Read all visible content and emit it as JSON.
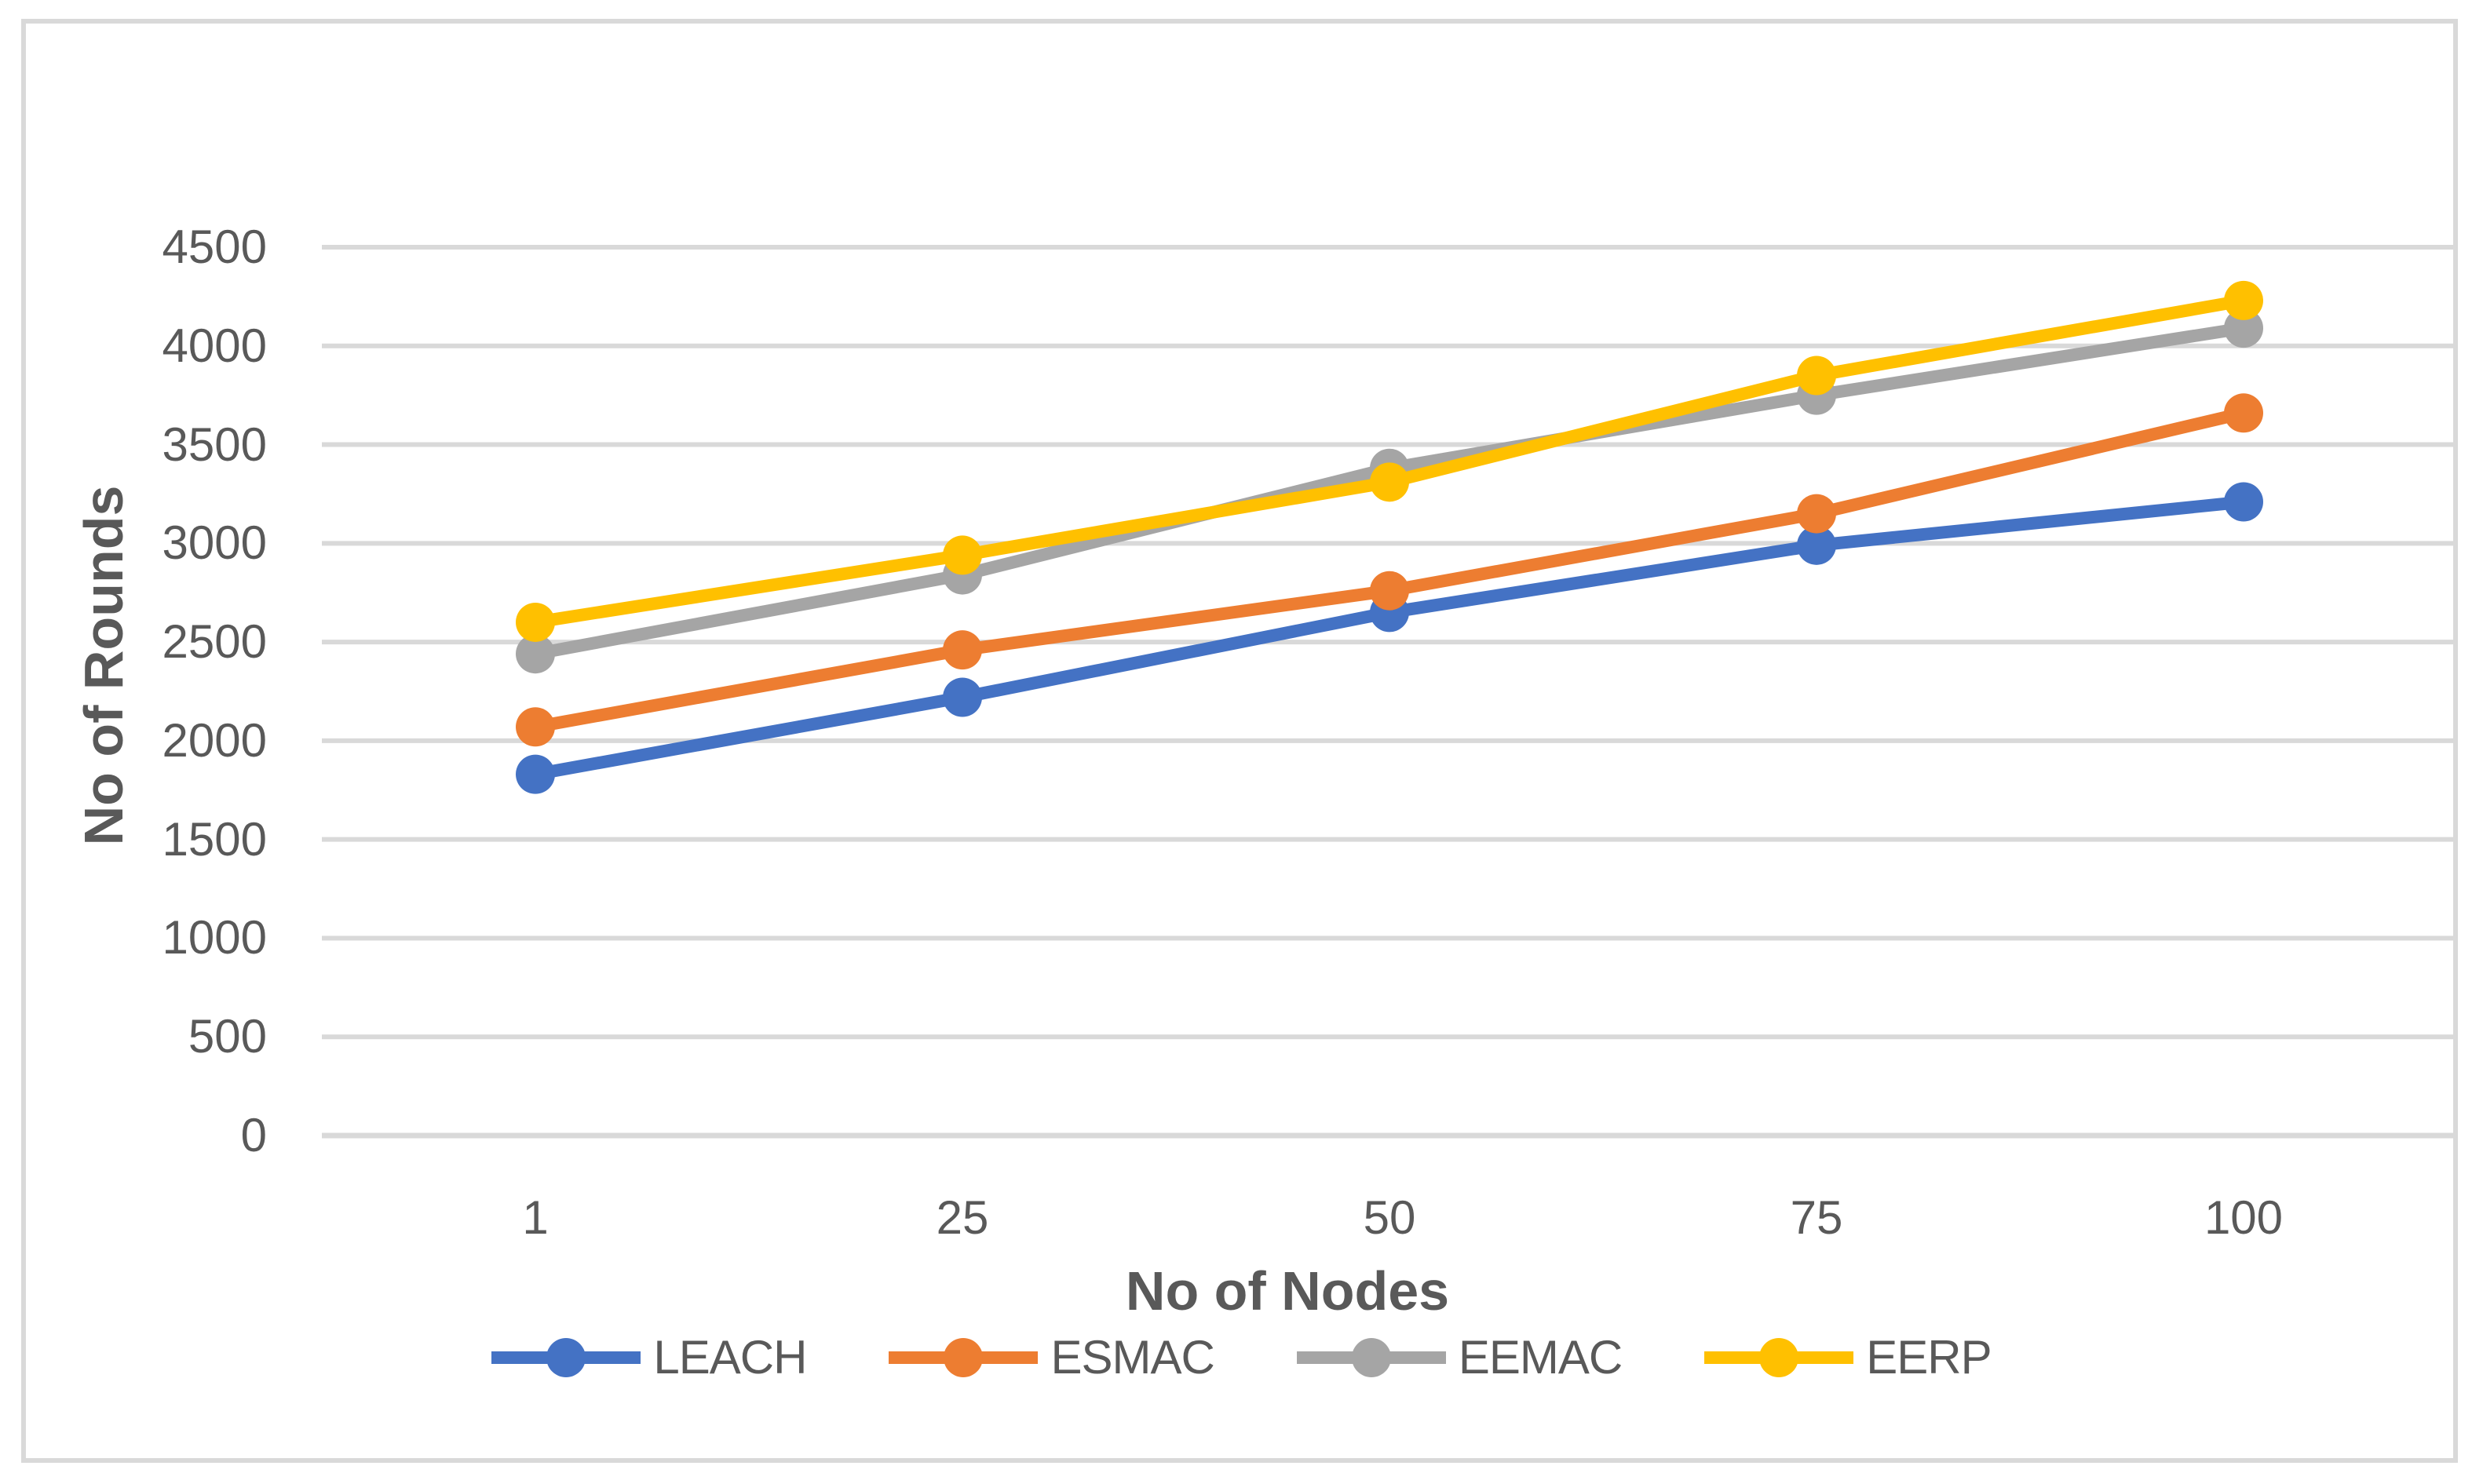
{
  "chart_data": {
    "type": "line",
    "title": "",
    "xlabel": "No of Nodes",
    "ylabel": "No of Rounds",
    "categories": [
      "1",
      "25",
      "50",
      "75",
      "100"
    ],
    "series": [
      {
        "name": "LEACH",
        "color": "#4472C4",
        "values": [
          1830,
          2220,
          2650,
          2990,
          3210
        ]
      },
      {
        "name": "ESMAC",
        "color": "#ED7D31",
        "values": [
          2070,
          2460,
          2760,
          3150,
          3660
        ]
      },
      {
        "name": "EEMAC",
        "color": "#A5A5A5",
        "values": [
          2440,
          2840,
          3380,
          3750,
          4090
        ]
      },
      {
        "name": "EERP",
        "color": "#FFC000",
        "values": [
          2600,
          2940,
          3310,
          3850,
          4230
        ]
      }
    ],
    "ylim": [
      0,
      4750
    ],
    "ytick_step": 500,
    "ytick_labels": [
      "4500",
      "4000",
      "3500",
      "3000",
      "2500",
      "2000",
      "1500",
      "1000",
      "500",
      "0"
    ],
    "grid": "horizontal",
    "gridline_color": "#D9D9D9",
    "axis_text_color": "#595959",
    "legend_position": "bottom",
    "legend": [
      "LEACH",
      "ESMAC",
      "EEMAC",
      "EERP"
    ]
  }
}
